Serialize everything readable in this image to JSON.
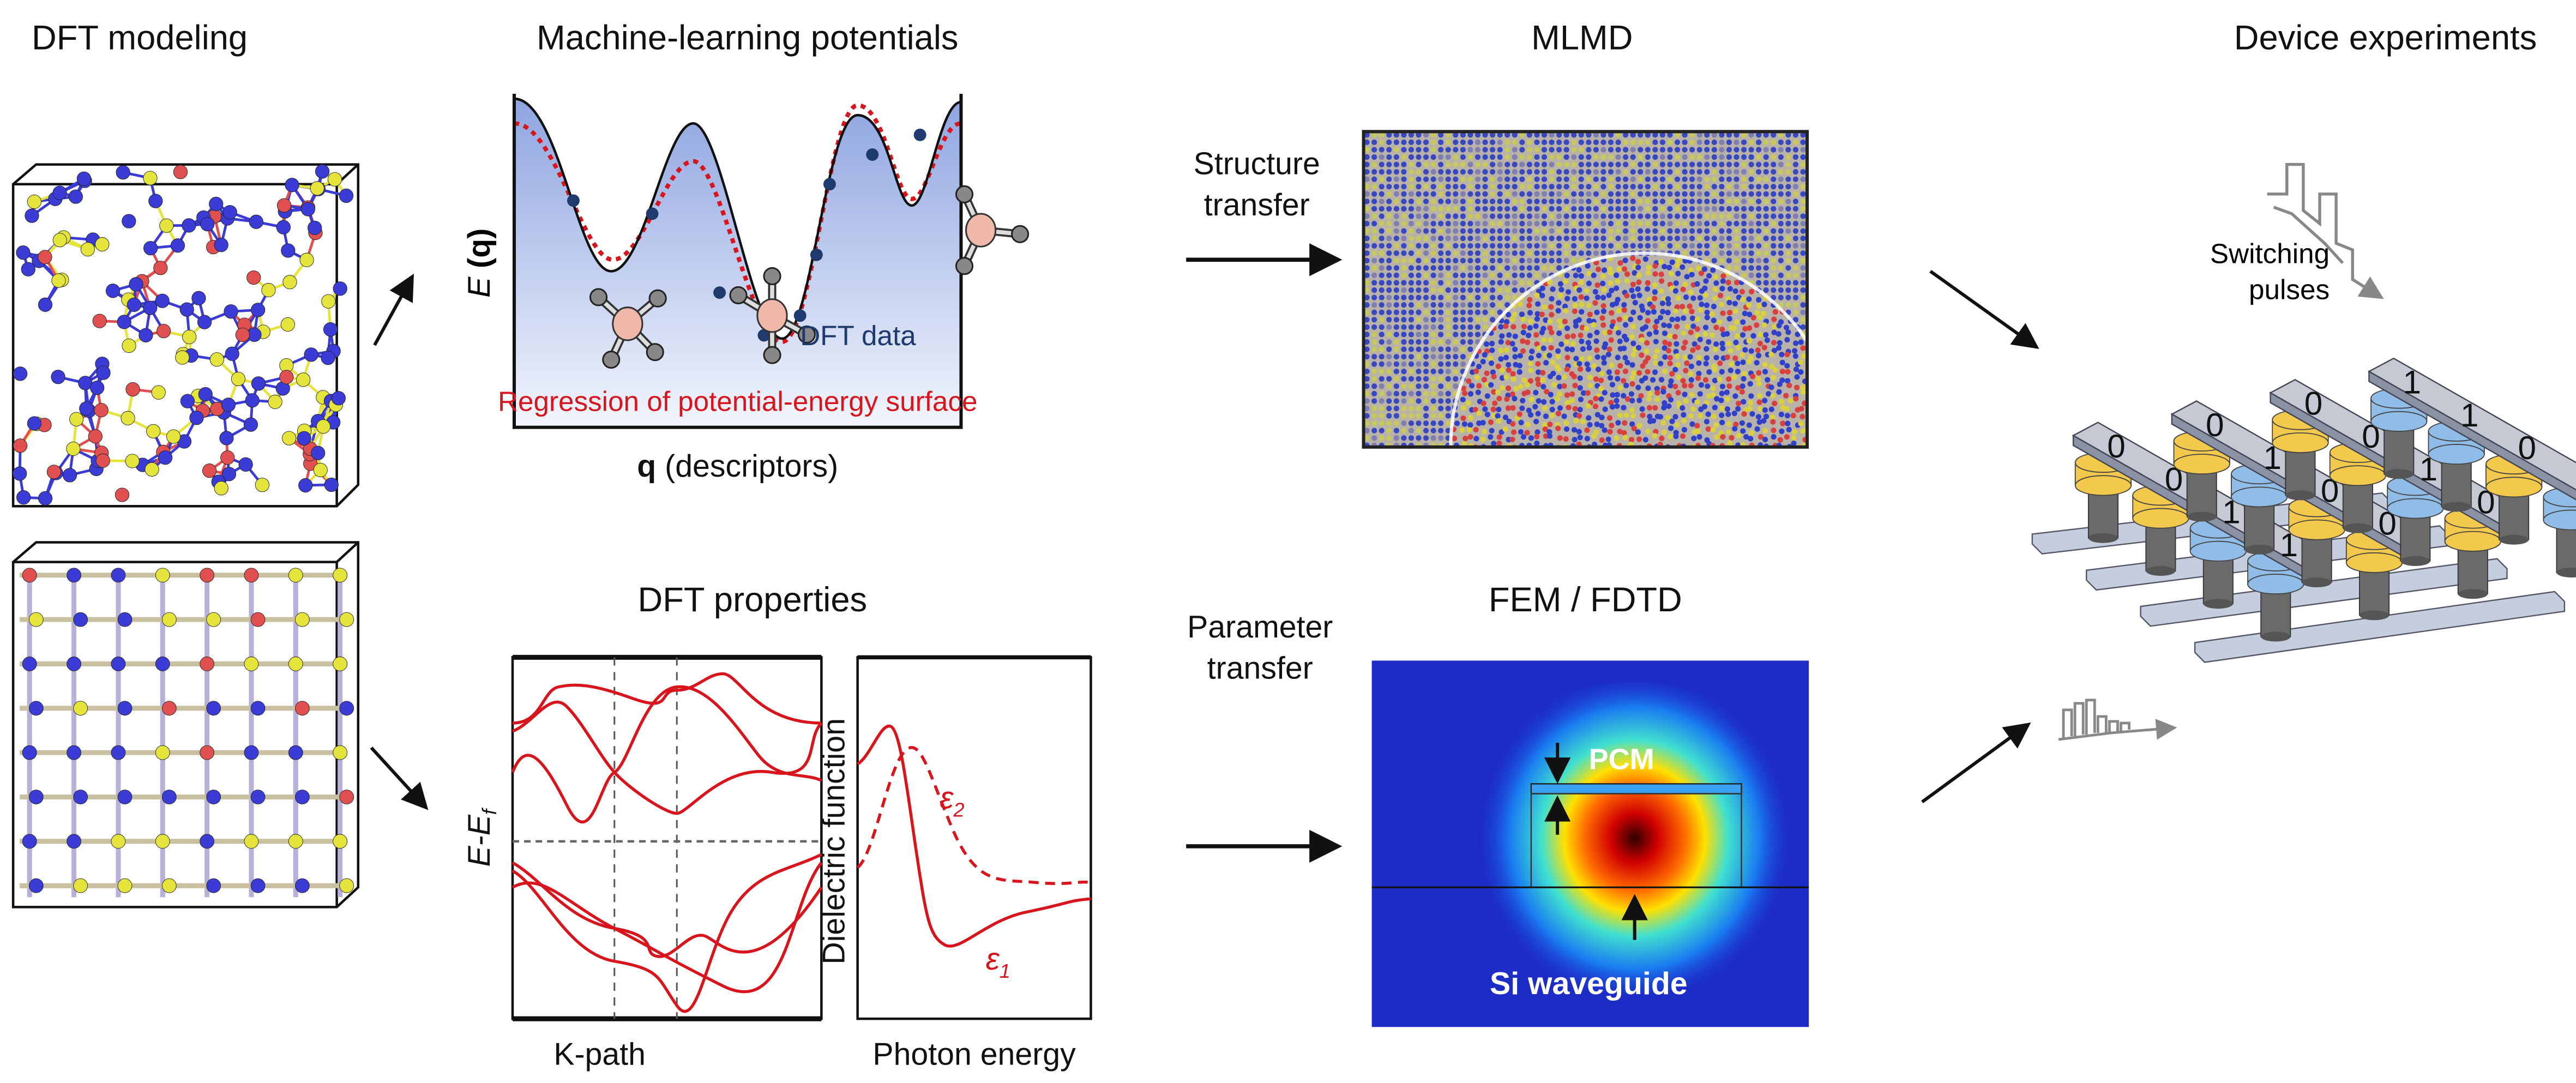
{
  "titles": {
    "dft_modeling": "DFT modeling",
    "ml_potentials": "Machine-learning potentials",
    "mlmd": "MLMD",
    "device_experiments": "Device experiments",
    "dft_properties": "DFT properties",
    "fem_fdtd": "FEM / FDTD"
  },
  "pes": {
    "y_axis_label_italic": "E",
    "y_axis_label_rest": " (q)",
    "x_axis_bold": "q",
    "x_axis_rest": " (descriptors)",
    "dft_data_label": "DFT data",
    "regression_label": "Regression of potential-energy surface"
  },
  "arrows": {
    "structure_transfer_line1": "Structure",
    "structure_transfer_line2": "transfer",
    "parameter_transfer_line1": "Parameter",
    "parameter_transfer_line2": "transfer"
  },
  "band": {
    "y_label_main": "E-E",
    "y_label_sub": "f",
    "x_label": "K-path"
  },
  "dielectric": {
    "y_label": "Dielectric function",
    "x_label": "Photon energy",
    "eps1": "ε",
    "eps1_sub": "1",
    "eps2": "ε",
    "eps2_sub": "2"
  },
  "fem": {
    "pcm_label": "PCM",
    "waveguide_label": "Si waveguide"
  },
  "device": {
    "pulses_line1": "Switching",
    "pulses_line2": "pulses",
    "bars": [
      [
        "0",
        "0",
        "1",
        "1"
      ],
      [
        "0",
        "1",
        "0",
        "0"
      ],
      [
        "0",
        "0",
        "1",
        "0"
      ],
      [
        "1",
        "1",
        "0",
        "1"
      ]
    ]
  },
  "colors": {
    "atom_blue": "#3b3bd6",
    "atom_yellow": "#e4e43c",
    "atom_red": "#e05050",
    "curve_red": "#d8141c",
    "dft_point": "#1f3a6e",
    "cell_yellow": "#f2c94c",
    "cell_blue": "#8fbde8"
  }
}
